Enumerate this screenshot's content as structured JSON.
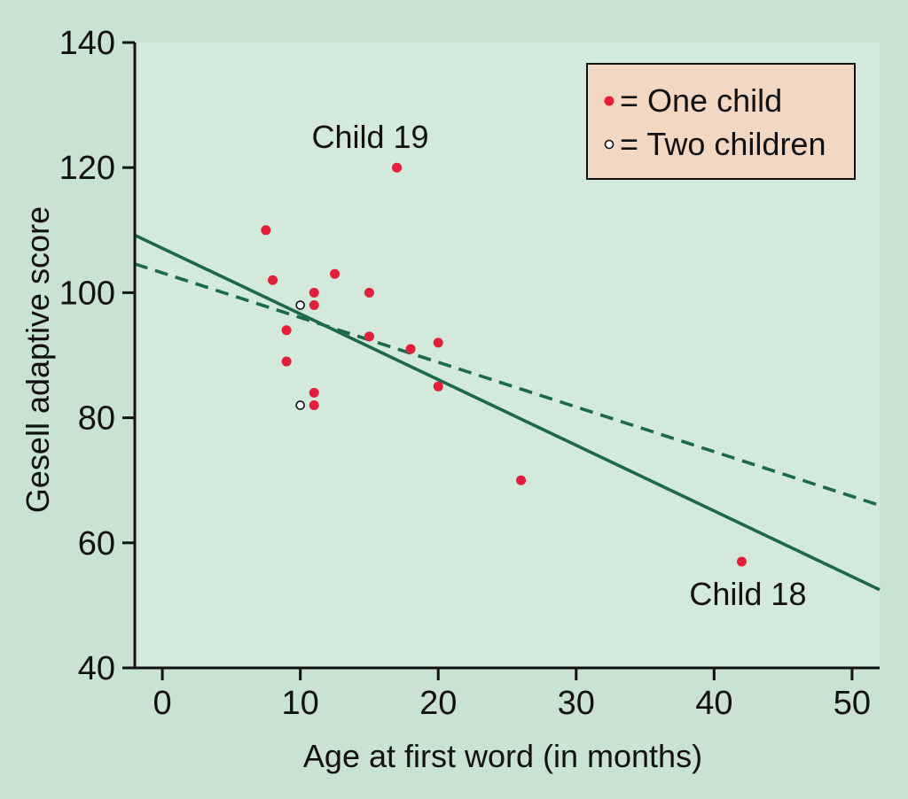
{
  "chart_data": {
    "type": "scatter",
    "title": "",
    "xlabel": "Age at first word (in months)",
    "ylabel": "Gesell adaptive score",
    "xlim": [
      -2,
      52
    ],
    "ylim": [
      40,
      140
    ],
    "xticks": [
      0,
      10,
      20,
      30,
      40,
      50
    ],
    "yticks": [
      40,
      60,
      80,
      100,
      120,
      140
    ],
    "grid": false,
    "legend_position": "top-right",
    "legend": [
      {
        "marker": "filled",
        "label": "= One child"
      },
      {
        "marker": "open",
        "label": "= Two children"
      }
    ],
    "series": [
      {
        "name": "One child",
        "marker": "filled",
        "points": [
          {
            "x": 7.5,
            "y": 110
          },
          {
            "x": 8,
            "y": 102
          },
          {
            "x": 9,
            "y": 94
          },
          {
            "x": 9,
            "y": 89
          },
          {
            "x": 11,
            "y": 100
          },
          {
            "x": 11,
            "y": 98
          },
          {
            "x": 11,
            "y": 84
          },
          {
            "x": 11,
            "y": 82
          },
          {
            "x": 12.5,
            "y": 103
          },
          {
            "x": 15,
            "y": 100
          },
          {
            "x": 15,
            "y": 93
          },
          {
            "x": 17,
            "y": 120
          },
          {
            "x": 18,
            "y": 91
          },
          {
            "x": 20,
            "y": 92
          },
          {
            "x": 20,
            "y": 85
          },
          {
            "x": 26,
            "y": 70
          },
          {
            "x": 42,
            "y": 57
          }
        ]
      },
      {
        "name": "Two children",
        "marker": "open",
        "points": [
          {
            "x": 10,
            "y": 98
          },
          {
            "x": 10,
            "y": 82
          }
        ]
      }
    ],
    "lines": [
      {
        "name": "least-squares fit (all children)",
        "style": "solid",
        "x": [
          -2,
          52
        ],
        "y": [
          109.2,
          52.5
        ]
      },
      {
        "name": "least-squares fit (without Child 18)",
        "style": "dashed",
        "x": [
          -2,
          52
        ],
        "y": [
          104.6,
          66
        ]
      }
    ],
    "annotations": [
      {
        "text": "Child 19",
        "x": 17,
        "y": 120
      },
      {
        "text": "Child 18",
        "x": 42,
        "y": 57
      }
    ],
    "colors": {
      "panel": "#c9e2d1",
      "plot_area": "#d2e9dc",
      "point": "#e3203a",
      "line": "#1d6a48",
      "legend_bg": "#f2d8c3"
    }
  }
}
